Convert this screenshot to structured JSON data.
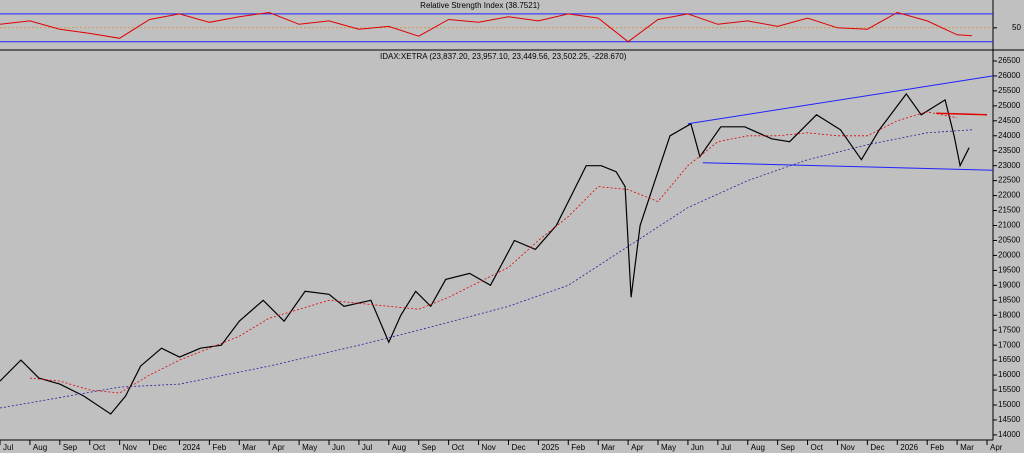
{
  "chart_data": [
    {
      "type": "rsi",
      "title": "Relative Strength Index (38.7521)",
      "x": [
        0,
        1,
        2,
        3,
        4,
        5,
        6,
        7,
        8,
        9,
        10,
        11,
        12,
        13,
        14,
        15,
        16,
        17,
        18,
        19,
        20,
        21,
        22,
        23,
        24,
        25,
        26,
        27,
        28,
        29,
        30,
        31,
        32,
        32.5
      ],
      "values": [
        55,
        60,
        48,
        42,
        35,
        62,
        70,
        58,
        66,
        72,
        55,
        60,
        48,
        52,
        38,
        62,
        58,
        66,
        60,
        70,
        64,
        30,
        62,
        70,
        55,
        60,
        52,
        64,
        50,
        48,
        72,
        60,
        40,
        38.75
      ],
      "color": "#e00000",
      "ylim": [
        21,
        90
      ],
      "yticks": [
        50
      ],
      "levels": [
        70,
        30
      ],
      "level_color": "#2020ff",
      "mid_color": "#e08000"
    },
    {
      "type": "line",
      "title": "IDAX:XETRA (23,837.20, 23,957.10, 23,449.56, 23,502.25, -228.670)",
      "xlim": [
        0,
        33.2
      ],
      "ylim": [
        13830,
        26800
      ],
      "yticks": [
        14000,
        14500,
        15000,
        15500,
        16000,
        16500,
        17000,
        17500,
        18000,
        18500,
        19000,
        19500,
        20000,
        20500,
        21000,
        21500,
        22000,
        22500,
        23000,
        23500,
        24000,
        24500,
        25000,
        25500,
        26000,
        26500
      ],
      "xticks": [
        {
          "value": 0,
          "label": "Jul"
        },
        {
          "value": 1,
          "label": "Aug"
        },
        {
          "value": 2,
          "label": "Sep"
        },
        {
          "value": 3,
          "label": "Oct"
        },
        {
          "value": 4,
          "label": "Nov"
        },
        {
          "value": 5,
          "label": "Dec"
        },
        {
          "value": 6,
          "label": "2024"
        },
        {
          "value": 7,
          "label": "Feb"
        },
        {
          "value": 8,
          "label": "Mar"
        },
        {
          "value": 9,
          "label": "Apr"
        },
        {
          "value": 10,
          "label": "May"
        },
        {
          "value": 11,
          "label": "Jun"
        },
        {
          "value": 12,
          "label": "Jul"
        },
        {
          "value": 13,
          "label": "Aug"
        },
        {
          "value": 14,
          "label": "Sep"
        },
        {
          "value": 15,
          "label": "Oct"
        },
        {
          "value": 16,
          "label": "Nov"
        },
        {
          "value": 17,
          "label": "Dec"
        },
        {
          "value": 18,
          "label": "2025"
        },
        {
          "value": 19,
          "label": "Feb"
        },
        {
          "value": 20,
          "label": "Mar"
        },
        {
          "value": 21,
          "label": "Apr"
        },
        {
          "value": 22,
          "label": "May"
        },
        {
          "value": 23,
          "label": "Jun"
        },
        {
          "value": 24,
          "label": "Jul"
        },
        {
          "value": 25,
          "label": "Aug"
        },
        {
          "value": 26,
          "label": "Sep"
        },
        {
          "value": 27,
          "label": "Oct"
        },
        {
          "value": 28,
          "label": "Nov"
        },
        {
          "value": 29,
          "label": "Dec"
        },
        {
          "value": 30,
          "label": "2026"
        },
        {
          "value": 31,
          "label": "Feb"
        },
        {
          "value": 32,
          "label": "Mar"
        },
        {
          "value": 33,
          "label": "Apr"
        }
      ],
      "series": [
        {
          "color": "#000000",
          "width": 1.2,
          "dash": false,
          "x": [
            0,
            0.7,
            1.3,
            2,
            2.8,
            3.7,
            4.2,
            4.7,
            5.4,
            6,
            6.7,
            7.4,
            8,
            8.8,
            9.5,
            10.2,
            11,
            11.5,
            12.4,
            13,
            13.4,
            13.9,
            14.4,
            14.9,
            15.7,
            16.4,
            17.2,
            17.9,
            18.6,
            19.1,
            19.6,
            20.1,
            20.6,
            20.9,
            21.1,
            21.4,
            21.9,
            22.4,
            23.1,
            23.4,
            24.1,
            24.9,
            25.8,
            26.4,
            27.3,
            28.1,
            28.8,
            29.4,
            30.3,
            30.8,
            31.6,
            31.9,
            32.1,
            32.4
          ],
          "values": [
            15800,
            16500,
            15900,
            15700,
            15300,
            14700,
            15300,
            16300,
            16900,
            16600,
            16900,
            17000,
            17800,
            18500,
            17800,
            18800,
            18700,
            18300,
            18500,
            17100,
            18000,
            18800,
            18300,
            19200,
            19400,
            19000,
            20500,
            20200,
            21000,
            22000,
            23000,
            23000,
            22800,
            22300,
            18600,
            21000,
            22500,
            24000,
            24400,
            23300,
            24300,
            24300,
            23900,
            23800,
            24700,
            24200,
            23200,
            24200,
            25400,
            24700,
            25200,
            24000,
            23000,
            23600
          ]
        },
        {
          "color": "#e00000",
          "width": 0.8,
          "dash": true,
          "x": [
            1,
            2,
            3,
            4,
            5,
            6,
            7,
            8,
            9,
            10,
            11,
            12,
            13,
            14,
            15,
            16,
            17,
            18,
            19,
            20,
            21,
            22,
            23,
            24,
            25,
            26,
            27,
            28,
            29,
            30,
            31,
            32
          ],
          "values": [
            15900,
            15800,
            15500,
            15400,
            16000,
            16500,
            16900,
            17300,
            17900,
            18200,
            18500,
            18400,
            18300,
            18200,
            18600,
            19100,
            19600,
            20500,
            21300,
            22300,
            22200,
            21800,
            23000,
            23800,
            24000,
            24000,
            24100,
            24000,
            24000,
            24500,
            24800,
            24600
          ]
        },
        {
          "color": "#2020a0",
          "width": 0.8,
          "dash": true,
          "x": [
            0,
            4,
            6,
            9,
            12,
            14,
            17,
            19,
            21,
            23,
            25,
            27,
            29,
            31,
            32.5
          ],
          "values": [
            14900,
            15600,
            15700,
            16300,
            17000,
            17500,
            18300,
            19000,
            20300,
            21600,
            22500,
            23200,
            23700,
            24100,
            24200
          ]
        },
        {
          "color": "#2020ff",
          "width": 1,
          "dash": false,
          "x": [
            23,
            33.2
          ],
          "values": [
            24400,
            26000
          ]
        },
        {
          "color": "#2020ff",
          "width": 1,
          "dash": false,
          "x": [
            23.5,
            33.2
          ],
          "values": [
            23100,
            22850
          ]
        },
        {
          "color": "#e00000",
          "width": 1.5,
          "dash": false,
          "x": [
            31.3,
            33
          ],
          "values": [
            24750,
            24700
          ]
        }
      ]
    }
  ]
}
